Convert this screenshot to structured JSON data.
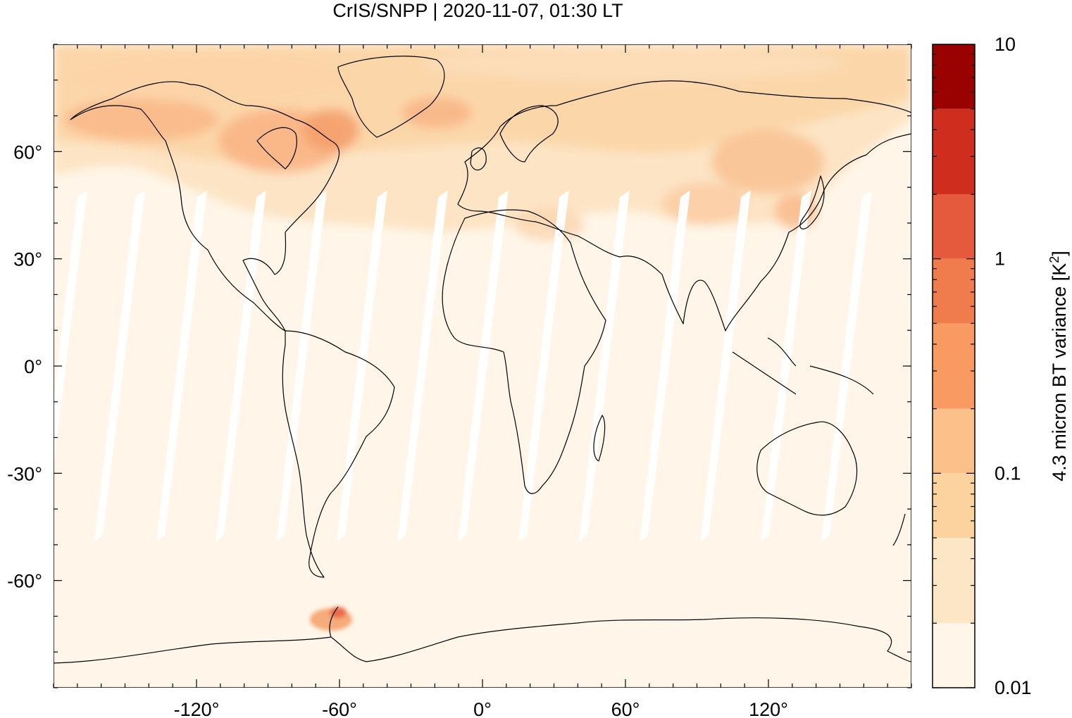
{
  "title": "CrIS/SNPP | 2020-11-07, 01:30 LT",
  "map": {
    "projection": "equirectangular",
    "lon_range": [
      -180,
      180
    ],
    "lat_range": [
      -90,
      90
    ],
    "x_ticks": [
      -120,
      -60,
      0,
      60,
      120
    ],
    "y_ticks": [
      60,
      30,
      0,
      -30,
      -60
    ],
    "x_tick_labels": [
      "-120°",
      "-60°",
      "0°",
      "60°",
      "120°"
    ],
    "y_tick_labels": [
      "60°",
      "30°",
      "0°",
      "-30°",
      "-60°"
    ],
    "coastlines": true,
    "orbit_gaps": "white diagonal swath gaps between satellite orbits"
  },
  "colorbar": {
    "label": "4.3 micron BT variance [K",
    "label_superscript": "2",
    "label_close": "]",
    "scale": "log",
    "range": [
      0.01,
      10
    ],
    "tick_values": [
      10,
      1,
      0.1,
      0.01
    ],
    "tick_labels": [
      "10",
      "1",
      "0.1",
      "0.01"
    ],
    "bins": [
      {
        "from": 0.01,
        "to": 0.02,
        "color": "#fff5e8"
      },
      {
        "from": 0.02,
        "to": 0.05,
        "color": "#fde6c6"
      },
      {
        "from": 0.05,
        "to": 0.1,
        "color": "#fcd39f"
      },
      {
        "from": 0.1,
        "to": 0.2,
        "color": "#fcc08a"
      },
      {
        "from": 0.2,
        "to": 0.5,
        "color": "#f99a63"
      },
      {
        "from": 0.5,
        "to": 1,
        "color": "#f07c4e"
      },
      {
        "from": 1,
        "to": 2,
        "color": "#e55a3d"
      },
      {
        "from": 2,
        "to": 5,
        "color": "#cf2e1f"
      },
      {
        "from": 5,
        "to": 10,
        "color": "#990200"
      }
    ]
  }
}
